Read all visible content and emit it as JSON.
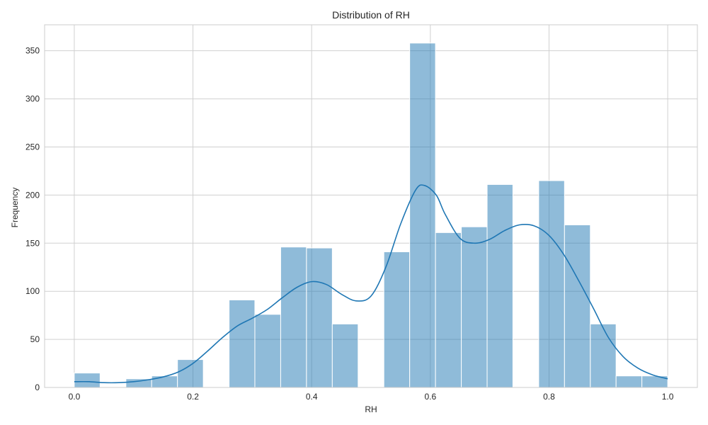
{
  "chart_data": {
    "type": "bar",
    "title": "Distribution of RH",
    "xlabel": "RH",
    "ylabel": "Frequency",
    "xlim": [
      -0.05,
      1.05
    ],
    "ylim": [
      0,
      377
    ],
    "xticks": [
      0.0,
      0.2,
      0.4,
      0.6,
      0.8,
      1.0
    ],
    "xtick_labels": [
      "0.0",
      "0.2",
      "0.4",
      "0.6",
      "0.8",
      "1.0"
    ],
    "yticks": [
      0,
      50,
      100,
      150,
      200,
      250,
      300,
      350
    ],
    "ytick_labels": [
      "0",
      "50",
      "100",
      "150",
      "200",
      "250",
      "300",
      "350"
    ],
    "grid": true,
    "bar_color": "#1f77b4",
    "kde_color": "#1f77b4",
    "bins": [
      {
        "x0": 0.0,
        "x1": 0.0435,
        "count": 15
      },
      {
        "x0": 0.0435,
        "x1": 0.087,
        "count": 0
      },
      {
        "x0": 0.087,
        "x1": 0.1304,
        "count": 9
      },
      {
        "x0": 0.1304,
        "x1": 0.1739,
        "count": 12
      },
      {
        "x0": 0.1739,
        "x1": 0.2174,
        "count": 29
      },
      {
        "x0": 0.2174,
        "x1": 0.2609,
        "count": 0
      },
      {
        "x0": 0.2609,
        "x1": 0.3043,
        "count": 91
      },
      {
        "x0": 0.3043,
        "x1": 0.3478,
        "count": 76
      },
      {
        "x0": 0.3478,
        "x1": 0.3913,
        "count": 146
      },
      {
        "x0": 0.3913,
        "x1": 0.4348,
        "count": 145
      },
      {
        "x0": 0.4348,
        "x1": 0.4783,
        "count": 66
      },
      {
        "x0": 0.4783,
        "x1": 0.5217,
        "count": 0
      },
      {
        "x0": 0.5217,
        "x1": 0.5652,
        "count": 141
      },
      {
        "x0": 0.5652,
        "x1": 0.6087,
        "count": 358
      },
      {
        "x0": 0.6087,
        "x1": 0.6522,
        "count": 161
      },
      {
        "x0": 0.6522,
        "x1": 0.6957,
        "count": 167
      },
      {
        "x0": 0.6957,
        "x1": 0.7391,
        "count": 211
      },
      {
        "x0": 0.7391,
        "x1": 0.7826,
        "count": 0
      },
      {
        "x0": 0.7826,
        "x1": 0.8261,
        "count": 215
      },
      {
        "x0": 0.8261,
        "x1": 0.8696,
        "count": 169
      },
      {
        "x0": 0.8696,
        "x1": 0.913,
        "count": 66
      },
      {
        "x0": 0.913,
        "x1": 0.9565,
        "count": 12
      },
      {
        "x0": 0.9565,
        "x1": 1.0,
        "count": 12
      }
    ],
    "kde": {
      "x": [
        0.0,
        0.025,
        0.05,
        0.075,
        0.1,
        0.125,
        0.15,
        0.175,
        0.2,
        0.225,
        0.25,
        0.275,
        0.3,
        0.325,
        0.35,
        0.375,
        0.4,
        0.425,
        0.45,
        0.475,
        0.5,
        0.525,
        0.55,
        0.575,
        0.59,
        0.61,
        0.625,
        0.65,
        0.675,
        0.7,
        0.725,
        0.75,
        0.775,
        0.8,
        0.825,
        0.85,
        0.875,
        0.9,
        0.925,
        0.95,
        0.975,
        1.0
      ],
      "y": [
        6,
        6,
        5,
        5,
        6,
        8,
        11,
        16,
        25,
        38,
        52,
        64,
        72,
        81,
        93,
        104,
        110,
        107,
        97,
        90,
        95,
        125,
        170,
        205,
        210,
        200,
        180,
        155,
        150,
        154,
        163,
        169,
        168,
        158,
        138,
        111,
        82,
        52,
        32,
        20,
        13,
        9
      ]
    }
  }
}
